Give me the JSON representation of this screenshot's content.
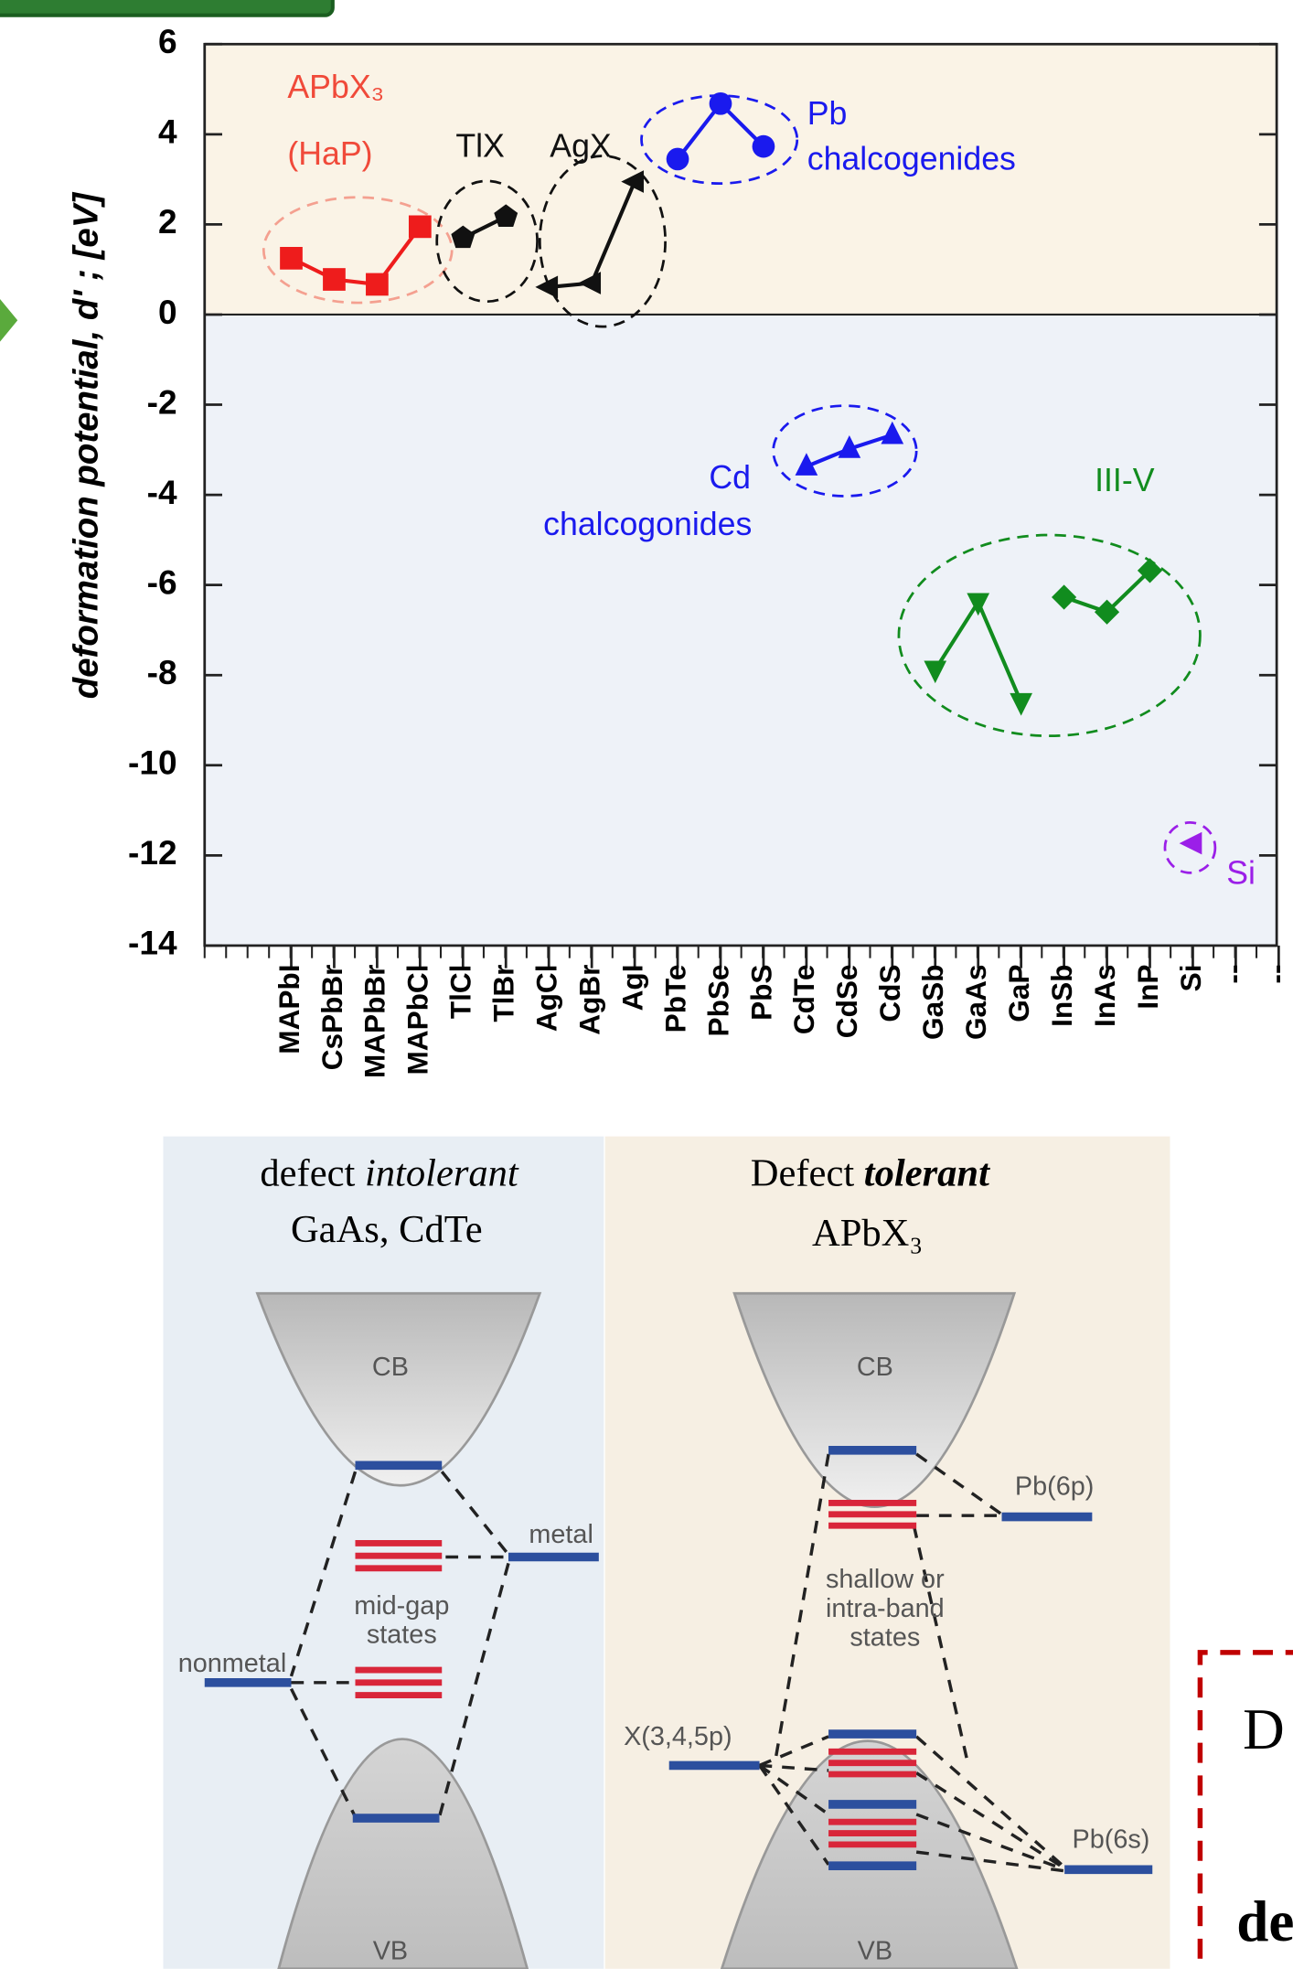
{
  "chart_data": {
    "type": "line",
    "y_label": "deformation potential, d' ; [eV]",
    "categories": [
      "MAPbI",
      "CsPbBr",
      "MAPbBr",
      "MAPbCl",
      "TlCl",
      "TlBr",
      "AgCl",
      "AgBr",
      "AgI",
      "PbTe",
      "PbSe",
      "PbS",
      "CdTe",
      "CdSe",
      "CdS",
      "GaSb",
      "GaAs",
      "GaP",
      "InSb",
      "InAs",
      "InP",
      "Si",
      "--",
      "--"
    ],
    "series": [
      {
        "color": "#ee1c1c",
        "marker": "square",
        "values": [
          1.25,
          0.78,
          0.67,
          1.95,
          null,
          null,
          null,
          null,
          null,
          null,
          null,
          null,
          null,
          null,
          null,
          null,
          null,
          null,
          null,
          null,
          null,
          null,
          null,
          null
        ]
      },
      {
        "color": "#111111",
        "marker": "pentagon",
        "values": [
          null,
          null,
          null,
          null,
          1.7,
          2.17,
          null,
          null,
          null,
          null,
          null,
          null,
          null,
          null,
          null,
          null,
          null,
          null,
          null,
          null,
          null,
          null,
          null,
          null
        ]
      },
      {
        "color": "#111111",
        "marker": "triangle-left",
        "values": [
          null,
          null,
          null,
          null,
          null,
          null,
          0.61,
          0.7,
          2.95,
          null,
          null,
          null,
          null,
          null,
          null,
          null,
          null,
          null,
          null,
          null,
          null,
          null,
          null,
          null
        ]
      },
      {
        "color": "#1a1aee",
        "marker": "circle",
        "values": [
          null,
          null,
          null,
          null,
          null,
          null,
          null,
          null,
          null,
          3.45,
          4.68,
          3.73,
          null,
          null,
          null,
          null,
          null,
          null,
          null,
          null,
          null,
          null,
          null,
          null
        ]
      },
      {
        "color": "#1a1aee",
        "marker": "triangle-up",
        "values": [
          null,
          null,
          null,
          null,
          null,
          null,
          null,
          null,
          null,
          null,
          null,
          null,
          -3.37,
          -2.98,
          -2.67,
          null,
          null,
          null,
          null,
          null,
          null,
          null,
          null,
          null
        ]
      },
      {
        "color": "#118c1e",
        "marker": "triangle-down",
        "values": [
          null,
          null,
          null,
          null,
          null,
          null,
          null,
          null,
          null,
          null,
          null,
          null,
          null,
          null,
          null,
          -7.88,
          -6.38,
          -8.6,
          null,
          null,
          null,
          null,
          null,
          null
        ]
      },
      {
        "color": "#118c1e",
        "marker": "diamond",
        "values": [
          null,
          null,
          null,
          null,
          null,
          null,
          null,
          null,
          null,
          null,
          null,
          null,
          null,
          null,
          null,
          null,
          null,
          null,
          -6.27,
          -6.6,
          -5.68,
          null,
          null,
          null
        ]
      },
      {
        "color": "#9b1fe8",
        "marker": "triangle-left",
        "values": [
          null,
          null,
          null,
          null,
          null,
          null,
          null,
          null,
          null,
          null,
          null,
          null,
          null,
          null,
          null,
          null,
          null,
          null,
          null,
          null,
          null,
          -11.73,
          null,
          null
        ]
      }
    ],
    "annotations": [
      {
        "text": "APbX₃",
        "color": "#f04a3a"
      },
      {
        "text": "(HaP)",
        "color": "#f04a3a"
      },
      {
        "text": "TlX",
        "color": "#111111"
      },
      {
        "text": "AgX",
        "color": "#111111"
      },
      {
        "text": "Pb",
        "color": "#1a1aee"
      },
      {
        "text": "chalcogenides",
        "color": "#1a1aee"
      },
      {
        "text": "Cd",
        "color": "#1a1aee"
      },
      {
        "text": "chalcogonides",
        "color": "#1a1aee"
      },
      {
        "text": "III-V",
        "color": "#118c1e"
      },
      {
        "text": "Si",
        "color": "#9b1fe8"
      }
    ],
    "ylim": [
      -14,
      6
    ],
    "yticks": [
      -14,
      -12,
      -10,
      -8,
      -6,
      -4,
      -2,
      0,
      2,
      4,
      6
    ]
  },
  "diagram": {
    "left": {
      "title_1": "defect ",
      "title_2": "intolerant",
      "subtitle": "GaAs, CdTe",
      "cb": "CB",
      "vb": "VB",
      "metal": "metal",
      "midgap_1": "mid-gap",
      "midgap_2": "states",
      "nonmetal": "nonmetal"
    },
    "right": {
      "title_1": "Defect ",
      "title_2": "tolerant",
      "subtitle": "APbX₃",
      "cb": "CB",
      "vb": "VB",
      "pb6p": "Pb(6p)",
      "shallow_1": "shallow or",
      "shallow_2": "intra-band",
      "shallow_3": "states",
      "x345p": "X(3,4,5p)",
      "pb6s": "Pb(6s)"
    }
  },
  "callout": {
    "line_1": "D",
    "line_2": "de"
  }
}
